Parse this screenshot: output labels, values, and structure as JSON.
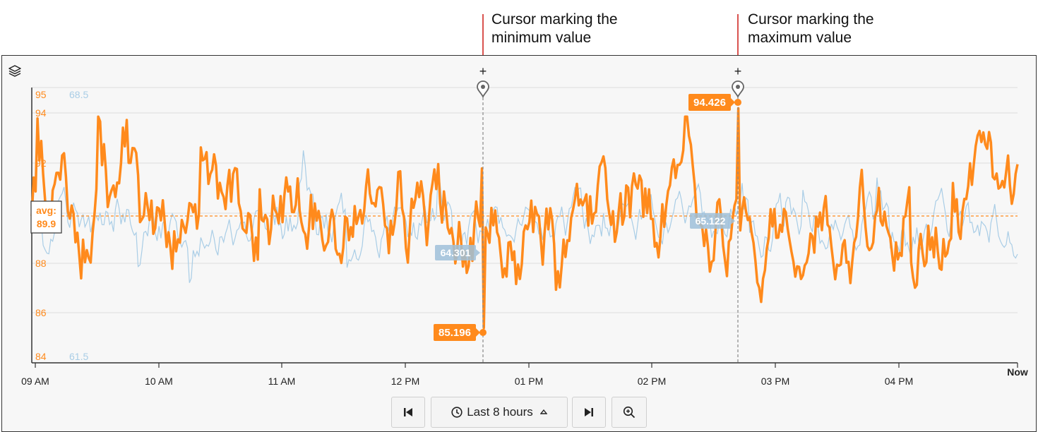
{
  "annotations": {
    "min_cursor": {
      "line1": "Cursor marking the",
      "line2": "minimum value"
    },
    "max_cursor": {
      "line1": "Cursor marking the",
      "line2": "maximum value"
    }
  },
  "controls": {
    "range_label": "Last 8 hours",
    "icons": [
      "skip-back-icon",
      "clock-icon",
      "caret-up-icon",
      "skip-forward-icon",
      "zoom-in-icon"
    ]
  },
  "layers_icon": "layers-icon",
  "colors": {
    "primary": "#ff8a1c",
    "secondary": "#a9cde6",
    "annotation_line": "#d9534f"
  },
  "chart_data": {
    "type": "line",
    "x_ticks": [
      "09 AM",
      "10 AM",
      "11 AM",
      "12 PM",
      "01 PM",
      "02 PM",
      "03 PM",
      "04 PM",
      "Now"
    ],
    "y_axis_primary": {
      "ticks": [
        "95",
        "94",
        "92",
        "88",
        "86",
        "84"
      ],
      "range": [
        84,
        95
      ]
    },
    "y_axis_secondary": {
      "ticks": [
        "68.5",
        "61.5"
      ],
      "range": [
        61.5,
        68.5
      ]
    },
    "avg": {
      "label": "avg:",
      "value": "89.9"
    },
    "series": [
      {
        "color": "#ff8a1c",
        "avg": 89.9,
        "min": 85.196,
        "max": 94.426
      },
      {
        "color": "#a9cde6"
      }
    ],
    "min_marker": {
      "time": "12:37 PM",
      "primary_label": "85.196",
      "secondary_label": "64.301"
    },
    "max_marker": {
      "time": "02:41 PM",
      "primary_label": "94.426",
      "secondary_label": "65.122"
    },
    "cursor_symbol": "+",
    "grid": true
  }
}
